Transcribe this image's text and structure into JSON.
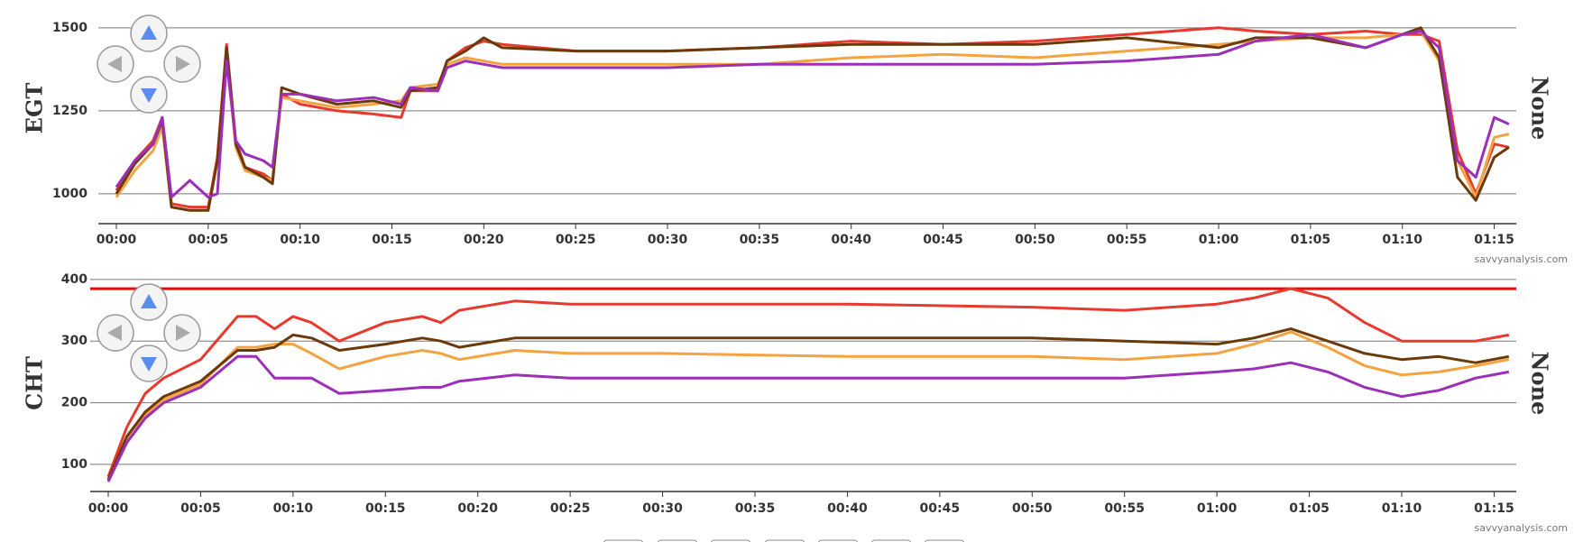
{
  "chart_data": [
    {
      "type": "line",
      "y_label": "EGT",
      "y2_label": "None",
      "source": "savvyanalysis.com",
      "xlim": [
        0,
        76.2
      ],
      "ylim": [
        910,
        1543
      ],
      "yticks": [
        1000,
        1250,
        1500
      ],
      "grid": true,
      "xticks": [
        {
          "value": 0,
          "label": "00:00"
        },
        {
          "value": 5,
          "label": "00:05"
        },
        {
          "value": 10,
          "label": "00:10"
        },
        {
          "value": 15,
          "label": "00:15"
        },
        {
          "value": 20,
          "label": "00:20"
        },
        {
          "value": 25,
          "label": "00:25"
        },
        {
          "value": 30,
          "label": "00:30"
        },
        {
          "value": 35,
          "label": "00:35"
        },
        {
          "value": 40,
          "label": "00:40"
        },
        {
          "value": 45,
          "label": "00:45"
        },
        {
          "value": 50,
          "label": "00:50"
        },
        {
          "value": 55,
          "label": "00:55"
        },
        {
          "value": 60,
          "label": "01:00"
        },
        {
          "value": 65,
          "label": "01:05"
        },
        {
          "value": 70,
          "label": "01:10"
        },
        {
          "value": 75,
          "label": "01:15"
        }
      ],
      "x": [
        0,
        1,
        2,
        2.5,
        3,
        4,
        5,
        5.5,
        6,
        6.5,
        7,
        8,
        8.5,
        9,
        10,
        12,
        14,
        15.5,
        16,
        17.5,
        18,
        19,
        20,
        21,
        25,
        30,
        35,
        40,
        45,
        50,
        55,
        60,
        62,
        65,
        68,
        70,
        71,
        72,
        73,
        74,
        75,
        75.8
      ],
      "series": [
        {
          "color": "#e8392f",
          "values": [
            1010,
            1100,
            1160,
            1230,
            970,
            960,
            960,
            1110,
            1450,
            1160,
            1080,
            1060,
            1040,
            1300,
            1270,
            1250,
            1240,
            1230,
            1310,
            1310,
            1400,
            1440,
            1460,
            1450,
            1430,
            1430,
            1440,
            1460,
            1450,
            1460,
            1480,
            1500,
            1490,
            1480,
            1490,
            1480,
            1480,
            1460,
            1130,
            1000,
            1150,
            1140
          ]
        },
        {
          "color": "#f4a340",
          "values": [
            990,
            1070,
            1130,
            1200,
            960,
            950,
            950,
            1100,
            1420,
            1140,
            1070,
            1050,
            1040,
            1290,
            1280,
            1260,
            1270,
            1280,
            1320,
            1330,
            1390,
            1410,
            1400,
            1390,
            1390,
            1390,
            1390,
            1410,
            1420,
            1410,
            1430,
            1450,
            1460,
            1470,
            1470,
            1480,
            1490,
            1400,
            1100,
            990,
            1170,
            1180
          ]
        },
        {
          "color": "#6b3a0a",
          "values": [
            1000,
            1090,
            1150,
            1220,
            960,
            950,
            950,
            1100,
            1440,
            1150,
            1080,
            1050,
            1030,
            1320,
            1300,
            1270,
            1280,
            1260,
            1310,
            1320,
            1400,
            1430,
            1470,
            1440,
            1430,
            1430,
            1440,
            1450,
            1450,
            1450,
            1470,
            1440,
            1470,
            1470,
            1440,
            1480,
            1500,
            1410,
            1050,
            980,
            1110,
            1140
          ]
        },
        {
          "color": "#9b2fb8",
          "values": [
            1020,
            1100,
            1150,
            1230,
            990,
            1040,
            990,
            1000,
            1400,
            1160,
            1120,
            1100,
            1080,
            1300,
            1300,
            1280,
            1290,
            1270,
            1320,
            1310,
            1380,
            1400,
            1390,
            1380,
            1380,
            1380,
            1390,
            1390,
            1390,
            1390,
            1400,
            1420,
            1460,
            1480,
            1440,
            1480,
            1490,
            1440,
            1100,
            1050,
            1230,
            1210
          ]
        }
      ]
    },
    {
      "type": "line",
      "y_label": "CHT",
      "y2_label": "None",
      "source": "savvyanalysis.com",
      "xlim": [
        0,
        76.2
      ],
      "ylim": [
        56,
        413
      ],
      "yticks": [
        100,
        200,
        300,
        400
      ],
      "grid": true,
      "limit_line": {
        "value": 385,
        "color": "#ff0000"
      },
      "xticks": [
        {
          "value": 0,
          "label": "00:00"
        },
        {
          "value": 5,
          "label": "00:05"
        },
        {
          "value": 10,
          "label": "00:10"
        },
        {
          "value": 15,
          "label": "00:15"
        },
        {
          "value": 20,
          "label": "00:20"
        },
        {
          "value": 25,
          "label": "00:25"
        },
        {
          "value": 30,
          "label": "00:30"
        },
        {
          "value": 35,
          "label": "00:35"
        },
        {
          "value": 40,
          "label": "00:40"
        },
        {
          "value": 45,
          "label": "00:45"
        },
        {
          "value": 50,
          "label": "00:50"
        },
        {
          "value": 55,
          "label": "00:55"
        },
        {
          "value": 60,
          "label": "01:00"
        },
        {
          "value": 65,
          "label": "01:05"
        },
        {
          "value": 70,
          "label": "01:10"
        },
        {
          "value": 75,
          "label": "01:15"
        }
      ],
      "x": [
        0,
        1,
        2,
        3,
        5,
        7,
        8,
        9,
        10,
        11,
        12.5,
        15,
        17,
        18,
        19,
        22,
        25,
        30,
        40,
        50,
        55,
        60,
        62,
        64,
        66,
        68,
        70,
        72,
        74,
        75.8
      ],
      "series": [
        {
          "color": "#e8392f",
          "values": [
            80,
            160,
            215,
            240,
            270,
            340,
            340,
            320,
            340,
            330,
            300,
            330,
            340,
            330,
            350,
            365,
            360,
            360,
            360,
            355,
            350,
            360,
            370,
            385,
            370,
            330,
            300,
            300,
            300,
            310
          ]
        },
        {
          "color": "#f4a340",
          "values": [
            75,
            140,
            180,
            205,
            230,
            290,
            290,
            295,
            295,
            280,
            255,
            275,
            285,
            280,
            270,
            285,
            280,
            280,
            275,
            275,
            270,
            280,
            295,
            315,
            290,
            260,
            245,
            250,
            260,
            270
          ]
        },
        {
          "color": "#6b3a0a",
          "values": [
            75,
            145,
            185,
            210,
            235,
            285,
            285,
            290,
            310,
            305,
            285,
            295,
            305,
            300,
            290,
            305,
            305,
            305,
            305,
            305,
            300,
            295,
            305,
            320,
            300,
            280,
            270,
            275,
            265,
            275
          ]
        },
        {
          "color": "#9b2fb8",
          "values": [
            72,
            135,
            175,
            200,
            225,
            275,
            275,
            240,
            240,
            240,
            215,
            220,
            225,
            225,
            235,
            245,
            240,
            240,
            240,
            240,
            240,
            250,
            255,
            265,
            250,
            225,
            210,
            220,
            240,
            250
          ]
        }
      ]
    }
  ]
}
